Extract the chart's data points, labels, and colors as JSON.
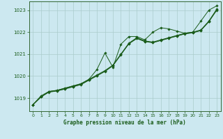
{
  "title": "Graphe pression niveau de la mer (hPa)",
  "background_color": "#cce8f0",
  "grid_color": "#aacccc",
  "line_color": "#1a5c1a",
  "xlim": [
    -0.5,
    23.5
  ],
  "ylim": [
    1018.4,
    1023.4
  ],
  "yticks": [
    1019,
    1020,
    1021,
    1022,
    1023
  ],
  "xticks": [
    0,
    1,
    2,
    3,
    4,
    5,
    6,
    7,
    8,
    9,
    10,
    11,
    12,
    13,
    14,
    15,
    16,
    17,
    18,
    19,
    20,
    21,
    22,
    23
  ],
  "series": [
    {
      "x": [
        0,
        1,
        2,
        3,
        4,
        5,
        6,
        7,
        8,
        9,
        10,
        11,
        12,
        13,
        14,
        15,
        16,
        17,
        18,
        19,
        20,
        21,
        22,
        23
      ],
      "y": [
        1018.7,
        1019.1,
        1019.3,
        1019.35,
        1019.45,
        1019.55,
        1019.65,
        1019.85,
        1020.3,
        1021.05,
        1020.4,
        1021.45,
        1021.8,
        1021.8,
        1021.65,
        1022.0,
        1022.2,
        1022.15,
        1022.05,
        1021.95,
        1022.0,
        1022.5,
        1023.0,
        1023.2
      ]
    },
    {
      "x": [
        0,
        1,
        2,
        3,
        4,
        5,
        6,
        7,
        8,
        9,
        10,
        11,
        12,
        13,
        14,
        15,
        16,
        17,
        18,
        19,
        20,
        21,
        22,
        23
      ],
      "y": [
        1018.7,
        1019.05,
        1019.3,
        1019.35,
        1019.45,
        1019.55,
        1019.65,
        1019.85,
        1020.05,
        1020.25,
        1020.5,
        1021.0,
        1021.5,
        1021.75,
        1021.6,
        1021.55,
        1021.65,
        1021.75,
        1021.85,
        1021.95,
        1022.0,
        1022.1,
        1022.5,
        1023.05
      ]
    },
    {
      "x": [
        0,
        1,
        2,
        3,
        4,
        5,
        6,
        7,
        8,
        9,
        10,
        11,
        12,
        13,
        14,
        15,
        16,
        17,
        18,
        19,
        20,
        21,
        22,
        23
      ],
      "y": [
        1018.7,
        1019.05,
        1019.28,
        1019.33,
        1019.42,
        1019.52,
        1019.62,
        1019.82,
        1020.02,
        1020.22,
        1020.48,
        1020.98,
        1021.48,
        1021.72,
        1021.58,
        1021.53,
        1021.63,
        1021.73,
        1021.83,
        1021.93,
        1021.98,
        1022.08,
        1022.48,
        1023.02
      ]
    },
    {
      "x": [
        0,
        1,
        2,
        3,
        4,
        5,
        6,
        7,
        8,
        9,
        10,
        11,
        12,
        13,
        14,
        15,
        16,
        17,
        18,
        19,
        20,
        21,
        22,
        23
      ],
      "y": [
        1018.7,
        1019.05,
        1019.27,
        1019.32,
        1019.41,
        1019.51,
        1019.61,
        1019.81,
        1020.01,
        1020.21,
        1020.47,
        1020.97,
        1021.47,
        1021.71,
        1021.57,
        1021.52,
        1021.62,
        1021.72,
        1021.82,
        1021.92,
        1021.97,
        1022.07,
        1022.47,
        1023.0
      ]
    }
  ]
}
